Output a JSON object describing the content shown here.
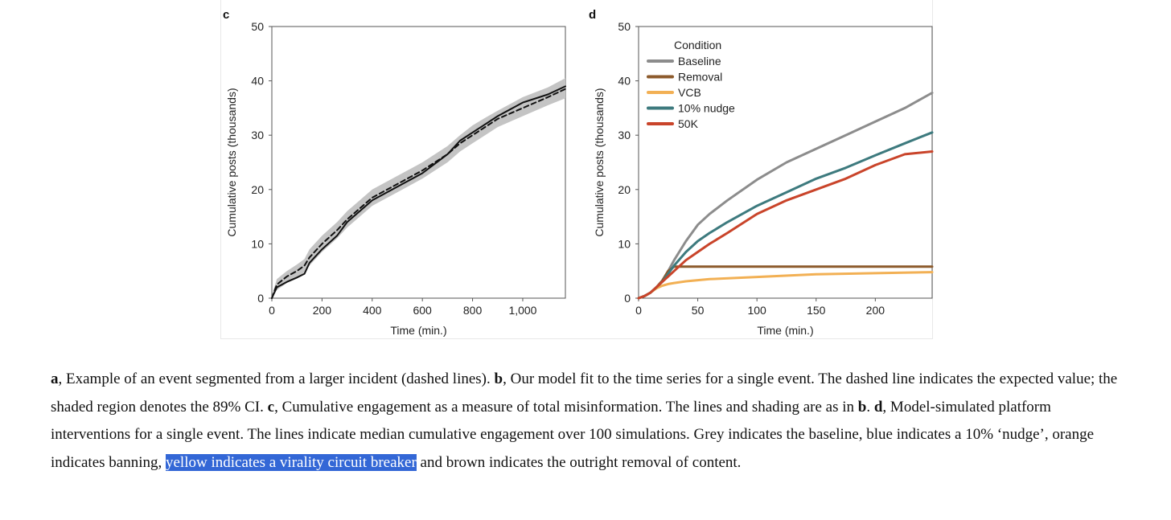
{
  "chart_data": [
    {
      "type": "line",
      "panel_label": "c",
      "xlabel": "Time (min.)",
      "ylabel": "Cumulative posts (thousands)",
      "xlim": [
        0,
        1170
      ],
      "ylim": [
        0,
        50
      ],
      "xticks": [
        0,
        200,
        400,
        600,
        800,
        1000
      ],
      "xtick_labels": [
        "0",
        "200",
        "400",
        "600",
        "800",
        "1,000"
      ],
      "yticks": [
        0,
        10,
        20,
        30,
        40,
        50
      ],
      "ytick_labels": [
        "0",
        "10",
        "20",
        "30",
        "40",
        "50"
      ],
      "grid": false,
      "legend": "none",
      "series": [
        {
          "style": "solid",
          "color": "#111111",
          "x": [
            0,
            20,
            60,
            100,
            130,
            150,
            200,
            260,
            300,
            400,
            500,
            600,
            700,
            750,
            800,
            850,
            900,
            1000,
            1100,
            1170
          ],
          "y": [
            0,
            2,
            3,
            3.8,
            4.5,
            6.5,
            9,
            11.5,
            14,
            18,
            20.5,
            23,
            26.5,
            29,
            30.5,
            32,
            33.5,
            36,
            37.5,
            39
          ]
        },
        {
          "style": "dashed",
          "color": "#111111",
          "x": [
            0,
            20,
            60,
            100,
            130,
            150,
            200,
            260,
            300,
            400,
            500,
            600,
            700,
            750,
            800,
            850,
            900,
            1000,
            1100,
            1170
          ],
          "y": [
            0,
            2.5,
            4,
            5,
            6,
            7.5,
            10,
            12.5,
            14.5,
            18.5,
            21,
            23.5,
            26.5,
            28.5,
            30,
            31.5,
            33,
            35,
            37,
            38.5
          ]
        }
      ],
      "band": {
        "color": "#c4c4c4",
        "x": [
          0,
          20,
          60,
          100,
          130,
          150,
          200,
          260,
          300,
          400,
          500,
          600,
          700,
          750,
          800,
          850,
          900,
          1000,
          1100,
          1170
        ],
        "lower": [
          0,
          1.5,
          2.8,
          3.6,
          4.8,
          6,
          8.5,
          11,
          13,
          17,
          19.5,
          22,
          25,
          27,
          28.5,
          30,
          31.5,
          33.5,
          35.5,
          36.8
        ],
        "upper": [
          0.5,
          3.5,
          5,
          6.2,
          7.2,
          9,
          11.5,
          14,
          16,
          20,
          22.5,
          25,
          28,
          30,
          31.8,
          33.2,
          34.5,
          37,
          38.8,
          40.5
        ]
      }
    },
    {
      "type": "line",
      "panel_label": "d",
      "xlabel": "Time (min.)",
      "ylabel": "Cumulative posts (thousands)",
      "xlim": [
        0,
        248
      ],
      "ylim": [
        0,
        50
      ],
      "xticks": [
        0,
        50,
        100,
        150,
        200
      ],
      "xtick_labels": [
        "0",
        "50",
        "100",
        "150",
        "200"
      ],
      "yticks": [
        0,
        10,
        20,
        30,
        40,
        50
      ],
      "ytick_labels": [
        "0",
        "10",
        "20",
        "30",
        "40",
        "50"
      ],
      "grid": false,
      "legend": "top-left",
      "legend_title": "Condition",
      "series": [
        {
          "name": "Baseline",
          "color": "#8c8c8c",
          "x": [
            0,
            5,
            10,
            15,
            20,
            25,
            30,
            40,
            50,
            60,
            75,
            100,
            125,
            150,
            175,
            200,
            225,
            248
          ],
          "y": [
            0,
            0.4,
            1,
            2,
            3.2,
            5,
            7,
            10.5,
            13.5,
            15.5,
            18,
            21.8,
            25,
            27.5,
            30,
            32.5,
            35,
            37.8
          ]
        },
        {
          "name": "Removal",
          "color": "#8c5a2b",
          "x": [
            0,
            5,
            10,
            15,
            20,
            25,
            30,
            40,
            60,
            100,
            150,
            200,
            248
          ],
          "y": [
            0,
            0.4,
            1,
            2,
            3.2,
            5,
            5.8,
            5.8,
            5.8,
            5.8,
            5.8,
            5.8,
            5.8
          ]
        },
        {
          "name": "VCB",
          "color": "#f2b054",
          "x": [
            0,
            5,
            10,
            15,
            20,
            25,
            30,
            40,
            60,
            100,
            150,
            200,
            248
          ],
          "y": [
            0,
            0.4,
            1,
            1.8,
            2.3,
            2.6,
            2.8,
            3.1,
            3.5,
            3.9,
            4.4,
            4.6,
            4.8
          ]
        },
        {
          "name": "10% nudge",
          "color": "#3d7a7e",
          "x": [
            0,
            5,
            10,
            15,
            20,
            25,
            30,
            40,
            50,
            60,
            75,
            100,
            125,
            150,
            175,
            200,
            225,
            248
          ],
          "y": [
            0,
            0.4,
            1,
            2,
            3,
            4.5,
            6,
            8.5,
            10.5,
            12,
            14,
            17,
            19.5,
            22,
            24,
            26.3,
            28.5,
            30.5
          ]
        },
        {
          "name": "50K",
          "color": "#c9442a",
          "x": [
            0,
            5,
            10,
            15,
            20,
            25,
            30,
            40,
            50,
            60,
            75,
            100,
            125,
            150,
            175,
            200,
            225,
            248
          ],
          "y": [
            0,
            0.4,
            1,
            2,
            3,
            4,
            5,
            7,
            8.5,
            10,
            12,
            15.5,
            18,
            20,
            22,
            24.5,
            26.5,
            27
          ]
        }
      ]
    }
  ],
  "caption": {
    "p1_label": "a",
    "p1": ", Example of an event segmented from a larger incident (dashed lines). ",
    "p2_label": "b",
    "p2": ", Our model fit to the time series for a single event. The dashed line indicates the expected value; the shaded region denotes the 89% CI. ",
    "p3_label": "c",
    "p3": ", Cumulative engagement as a measure of total misinformation. The lines and shading are as in ",
    "p3_ref": "b",
    "p3_end": ". ",
    "p4_label": "d",
    "p4": ", Model-simulated platform interventions for a single event. The lines indicate median cumulative engagement over 100 simulations. Grey indicates the baseline, blue indicates a 10% ‘nudge’, orange indicates banning, ",
    "highlight": "yellow indicates a virality circuit breaker",
    "p4_end": " and brown indicates the outright removal of content."
  }
}
